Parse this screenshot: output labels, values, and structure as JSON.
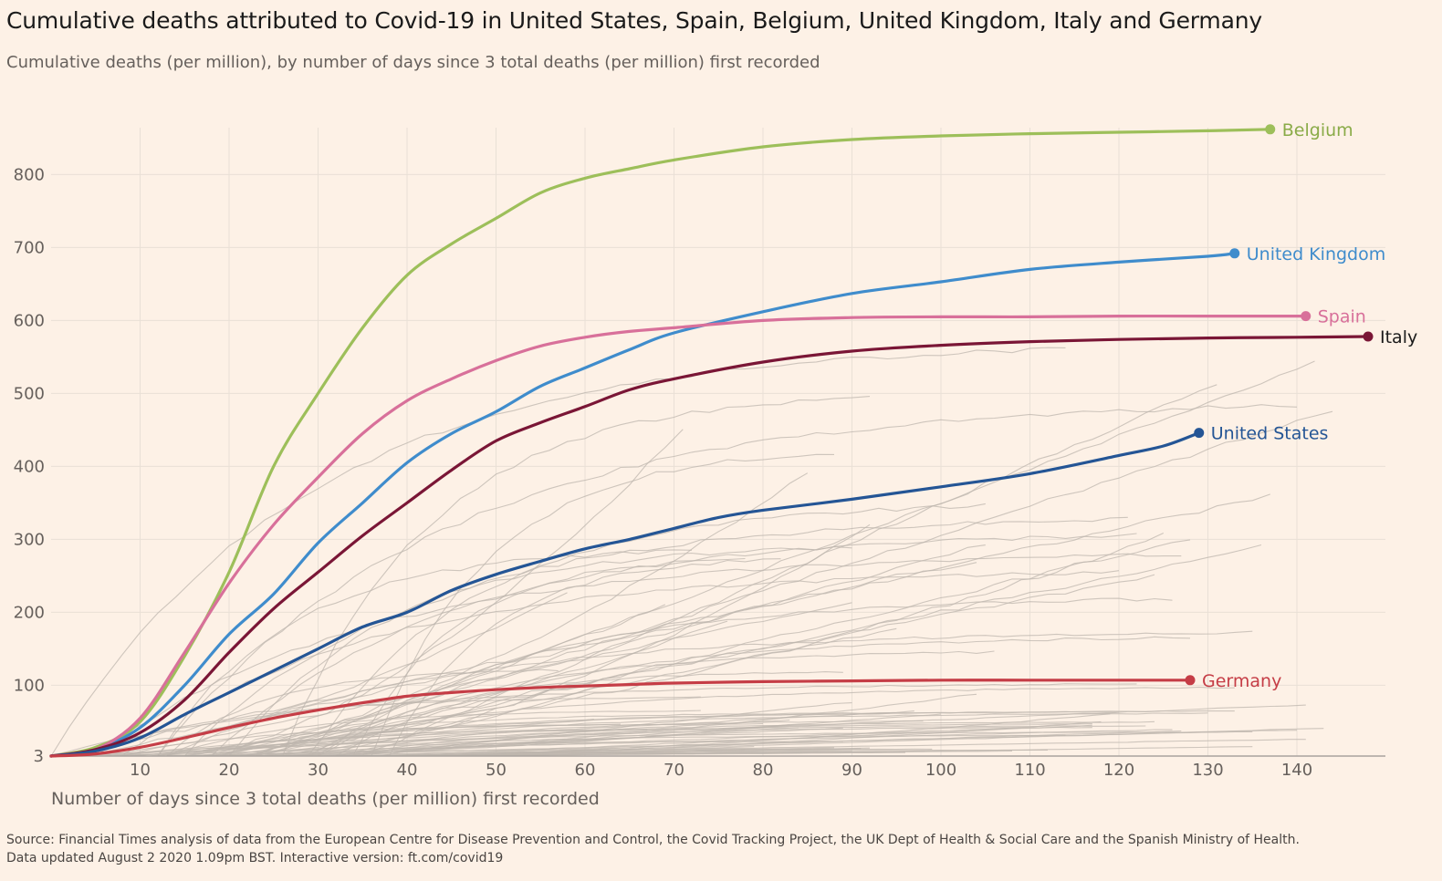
{
  "header": {
    "title": "Cumulative deaths attributed to Covid-19 in United States, Spain, Belgium, United Kingdom, Italy and Germany",
    "subtitle": "Cumulative deaths (per million), by number of days since 3 total deaths (per million) first recorded"
  },
  "footer": {
    "source": "Source: Financial Times analysis of data from the European Centre for Disease Prevention and Control, the Covid Tracking Project, the UK Dept of Health & Social Care and the Spanish Ministry of Health.",
    "updated": "Data updated August 2 2020 1.09pm BST. Interactive version: ft.com/covid19"
  },
  "colors": {
    "background": "#fdf1e6",
    "grid": "#e9e0d6",
    "background_lines": "#bdb5ad",
    "axis": "#a9a39d"
  },
  "chart_data": {
    "type": "line",
    "title": "Cumulative deaths attributed to Covid-19 in United States, Spain, Belgium, United Kingdom, Italy and Germany",
    "subtitle": "Cumulative deaths (per million), by number of days since 3 total deaths (per million) first recorded",
    "xlabel": "Number of days since 3 total deaths (per million) first recorded",
    "ylabel": "",
    "xlim": [
      0,
      150
    ],
    "ylim": [
      3,
      870
    ],
    "xticks": [
      10,
      20,
      30,
      40,
      50,
      60,
      70,
      80,
      90,
      100,
      110,
      120,
      130,
      140
    ],
    "yticks": [
      3,
      100,
      200,
      300,
      400,
      500,
      600,
      700,
      800
    ],
    "grid": true,
    "legend": "direct labels at line ends",
    "series": [
      {
        "name": "Belgium",
        "color": "#9dbf5a",
        "label_color": "#8aab48",
        "x": [
          0,
          5,
          10,
          15,
          20,
          25,
          30,
          35,
          40,
          45,
          50,
          55,
          60,
          65,
          70,
          80,
          90,
          100,
          110,
          120,
          130,
          137
        ],
        "y": [
          3,
          15,
          50,
          140,
          255,
          400,
          500,
          590,
          662,
          705,
          740,
          775,
          795,
          808,
          820,
          838,
          848,
          853,
          856,
          858,
          860,
          862
        ]
      },
      {
        "name": "United Kingdom",
        "color": "#3f8ccc",
        "label_color": "#3f8ccc",
        "x": [
          0,
          5,
          10,
          15,
          20,
          25,
          30,
          35,
          40,
          45,
          50,
          55,
          60,
          65,
          70,
          80,
          90,
          100,
          110,
          120,
          130,
          133
        ],
        "y": [
          3,
          12,
          42,
          100,
          170,
          225,
          295,
          350,
          405,
          445,
          475,
          510,
          535,
          560,
          583,
          612,
          637,
          653,
          670,
          680,
          688,
          692
        ]
      },
      {
        "name": "Spain",
        "color": "#d8709a",
        "label_color": "#d8709a",
        "x": [
          0,
          5,
          10,
          15,
          20,
          25,
          30,
          35,
          40,
          45,
          50,
          55,
          60,
          65,
          70,
          80,
          90,
          100,
          110,
          120,
          130,
          141
        ],
        "y": [
          3,
          12,
          55,
          145,
          240,
          320,
          385,
          445,
          490,
          520,
          545,
          565,
          577,
          585,
          590,
          600,
          604,
          605,
          605,
          606,
          606,
          606
        ]
      },
      {
        "name": "Italy",
        "color": "#7a1636",
        "label_color": "#1a1a1a",
        "x": [
          0,
          5,
          10,
          15,
          20,
          25,
          30,
          35,
          40,
          45,
          50,
          55,
          60,
          65,
          70,
          80,
          90,
          100,
          110,
          120,
          130,
          140,
          148
        ],
        "y": [
          3,
          12,
          35,
          80,
          145,
          205,
          255,
          305,
          350,
          395,
          435,
          460,
          482,
          505,
          520,
          543,
          558,
          566,
          571,
          574,
          576,
          577,
          578
        ]
      },
      {
        "name": "United States",
        "color": "#245595",
        "label_color": "#245595",
        "x": [
          0,
          5,
          10,
          15,
          20,
          25,
          30,
          35,
          40,
          45,
          50,
          55,
          60,
          65,
          70,
          75,
          80,
          90,
          100,
          110,
          120,
          125,
          129
        ],
        "y": [
          3,
          10,
          28,
          60,
          90,
          120,
          150,
          180,
          200,
          230,
          252,
          270,
          287,
          300,
          315,
          330,
          340,
          355,
          372,
          390,
          415,
          428,
          446
        ]
      },
      {
        "name": "Germany",
        "color": "#c53d46",
        "label_color": "#c53d46",
        "x": [
          0,
          5,
          10,
          15,
          20,
          25,
          30,
          35,
          40,
          45,
          50,
          55,
          60,
          65,
          70,
          80,
          90,
          100,
          110,
          120,
          128
        ],
        "y": [
          3,
          6,
          15,
          28,
          42,
          55,
          66,
          76,
          85,
          90,
          94,
          97,
          99,
          101,
          103,
          105,
          106,
          107,
          107,
          107,
          107
        ]
      }
    ]
  }
}
